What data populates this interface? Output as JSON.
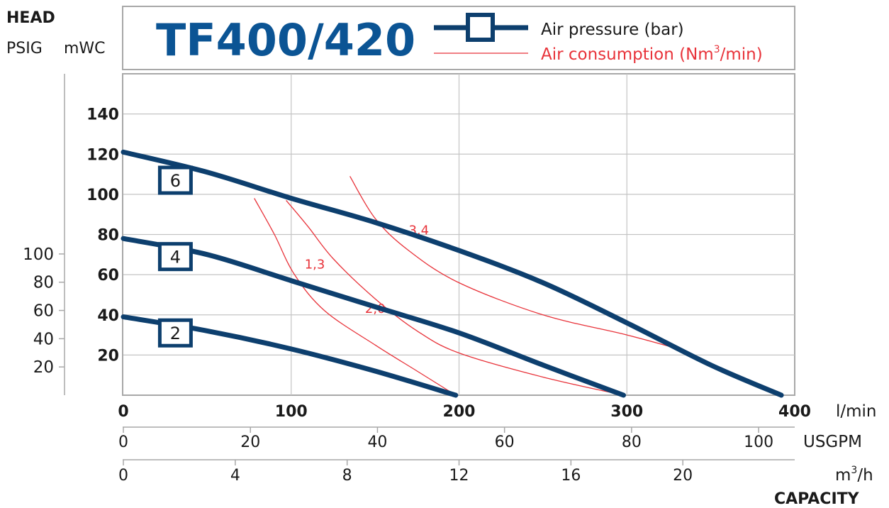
{
  "chart_data": {
    "type": "line",
    "title": "TF400/420",
    "corner_label": "HEAD",
    "psig_label": "PSIG",
    "mwc_label": "mWC",
    "capacity_label": "CAPACITY",
    "legend": {
      "air_pressure": "Air pressure (bar)",
      "air_consumption_prefix": "Air consumption (Nm",
      "air_consumption_sup": "3",
      "air_consumption_suffix": "/min)",
      "placement": "top-right"
    },
    "x_lmin": {
      "unit": "l/min",
      "ticks": [
        "0",
        "100",
        "200",
        "300",
        "400"
      ],
      "range": [
        0,
        400
      ]
    },
    "x_usgpm": {
      "unit": "USGPM",
      "ticks": [
        "0",
        "20",
        "40",
        "60",
        "80",
        "100"
      ]
    },
    "x_m3h": {
      "unit_prefix": "m",
      "unit_sup": "3",
      "unit_suffix": "/h",
      "ticks": [
        "0",
        "4",
        "8",
        "12",
        "16",
        "20"
      ]
    },
    "y_mwc": {
      "ticks": [
        "20",
        "40",
        "60",
        "80",
        "100",
        "120",
        "140"
      ],
      "range": [
        0,
        160
      ]
    },
    "y_psig": {
      "ticks": [
        "20",
        "40",
        "60",
        "80",
        "100"
      ]
    },
    "grid": true,
    "pressure_series": [
      {
        "label": "6",
        "label_at": [
          31,
          107
        ],
        "points": [
          [
            0,
            121
          ],
          [
            50,
            111
          ],
          [
            100,
            98
          ],
          [
            150,
            86
          ],
          [
            200,
            72
          ],
          [
            250,
            56
          ],
          [
            300,
            36
          ],
          [
            350,
            15
          ],
          [
            392,
            0
          ]
        ]
      },
      {
        "label": "4",
        "label_at": [
          31,
          69
        ],
        "points": [
          [
            0,
            78
          ],
          [
            50,
            70
          ],
          [
            100,
            57
          ],
          [
            150,
            44
          ],
          [
            200,
            31
          ],
          [
            250,
            15
          ],
          [
            298,
            0
          ]
        ]
      },
      {
        "label": "2",
        "label_at": [
          31,
          31
        ],
        "points": [
          [
            0,
            39
          ],
          [
            50,
            32
          ],
          [
            100,
            23
          ],
          [
            150,
            12
          ],
          [
            198,
            0
          ]
        ]
      }
    ],
    "consumption_series": [
      {
        "label": "1,3",
        "label_at": [
          108,
          63
        ],
        "points": [
          [
            78,
            98
          ],
          [
            90,
            80
          ],
          [
            102,
            60
          ],
          [
            120,
            42
          ],
          [
            150,
            25
          ],
          [
            175,
            12
          ],
          [
            198,
            0
          ]
        ]
      },
      {
        "label": "2,0",
        "label_at": [
          144,
          41
        ],
        "points": [
          [
            97,
            97
          ],
          [
            110,
            84
          ],
          [
            125,
            68
          ],
          [
            150,
            48
          ],
          [
            175,
            32
          ],
          [
            200,
            21
          ],
          [
            250,
            9
          ],
          [
            298,
            0
          ]
        ]
      },
      {
        "label": "3,4",
        "label_at": [
          170,
          80
        ],
        "points": [
          [
            135,
            109
          ],
          [
            150,
            88
          ],
          [
            170,
            72
          ],
          [
            200,
            56
          ],
          [
            250,
            40
          ],
          [
            300,
            30
          ],
          [
            335,
            22
          ]
        ]
      }
    ]
  }
}
